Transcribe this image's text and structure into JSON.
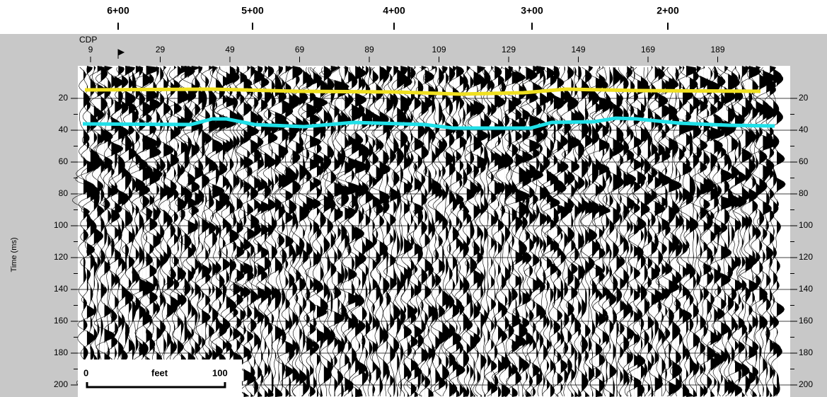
{
  "stations": {
    "labels": [
      "6+00",
      "5+00",
      "4+00",
      "3+00",
      "2+00"
    ]
  },
  "cdp_axis": {
    "title": "CDP",
    "ticks": [
      9,
      29,
      49,
      69,
      89,
      109,
      129,
      149,
      169,
      189
    ]
  },
  "time_axis": {
    "title": "Time (ms)",
    "ticks": [
      20,
      40,
      60,
      80,
      100,
      120,
      140,
      160,
      180,
      200
    ]
  },
  "scale_bar": {
    "start": "0",
    "unit": "feet",
    "end": "100"
  }
}
